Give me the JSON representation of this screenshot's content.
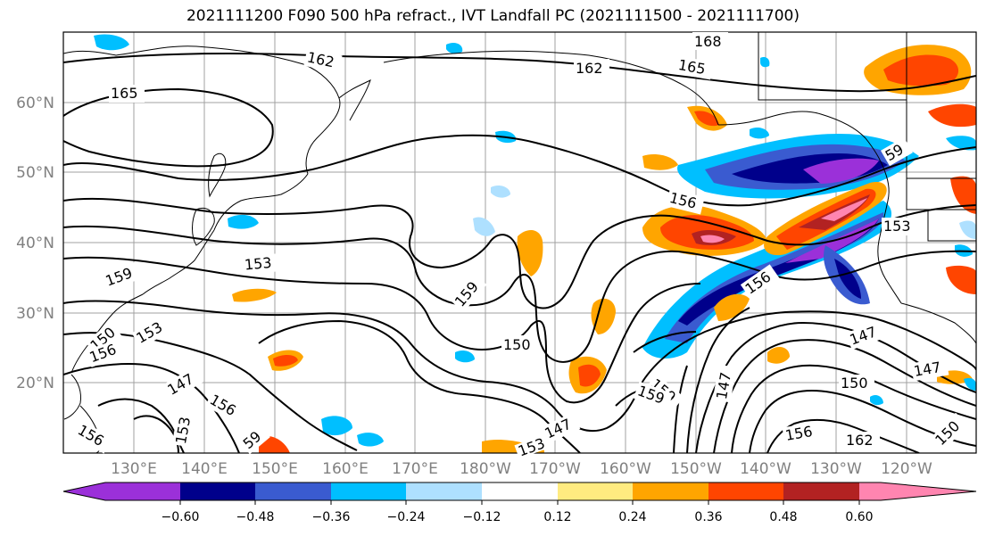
{
  "title": "2021111200 F090 500 hPa refract., IVT Landfall PC (2021111500 - 2021111700)",
  "lat_labels": [
    "60°N",
    "50°N",
    "40°N",
    "30°N",
    "20°N"
  ],
  "lon_labels": [
    "130°E",
    "140°E",
    "150°E",
    "160°E",
    "170°E",
    "180°W",
    "170°W",
    "160°W",
    "150°W",
    "140°W",
    "130°W",
    "120°W"
  ],
  "contour_labels": [
    {
      "id": "c168",
      "text": "168"
    },
    {
      "id": "c162a",
      "text": "162"
    },
    {
      "id": "c162b",
      "text": "162"
    },
    {
      "id": "c165a",
      "text": "165"
    },
    {
      "id": "c165b",
      "text": "165"
    },
    {
      "id": "c156a",
      "text": "156"
    },
    {
      "id": "c153a",
      "text": "153"
    },
    {
      "id": "c159a",
      "text": "159"
    },
    {
      "id": "c159b",
      "text": "159"
    },
    {
      "id": "c150a",
      "text": "150"
    },
    {
      "id": "c156b",
      "text": "156"
    },
    {
      "id": "c153b",
      "text": "153"
    },
    {
      "id": "c150b",
      "text": "150"
    },
    {
      "id": "c156c",
      "text": "156"
    },
    {
      "id": "c147a",
      "text": "147"
    },
    {
      "id": "c156d",
      "text": "156"
    },
    {
      "id": "c153c",
      "text": "153"
    },
    {
      "id": "c59a",
      "text": "59"
    },
    {
      "id": "c156e",
      "text": "156"
    },
    {
      "id": "c147b",
      "text": "147"
    },
    {
      "id": "c153d",
      "text": "153"
    },
    {
      "id": "c147c",
      "text": "147"
    },
    {
      "id": "c147d",
      "text": "147"
    },
    {
      "id": "c147e",
      "text": "147"
    },
    {
      "id": "c150c",
      "text": "150"
    },
    {
      "id": "c159c",
      "text": "159"
    },
    {
      "id": "c156f",
      "text": "156"
    },
    {
      "id": "c162c",
      "text": "162"
    },
    {
      "id": "c150d",
      "text": "150"
    },
    {
      "id": "c159d",
      "text": "59"
    },
    {
      "id": "c159e",
      "text": "159"
    },
    {
      "id": "c153e",
      "text": "153"
    }
  ],
  "colorbar": {
    "colors": [
      "#9b30d9",
      "#00008b",
      "#3a5bd0",
      "#00bfff",
      "#aee0ff",
      "#ffffff",
      "#ffeb80",
      "#ffa500",
      "#ff4500",
      "#b22222",
      "#ff85b0"
    ],
    "tick_labels": [
      "−0.60",
      "−0.48",
      "−0.36",
      "−0.24",
      "−0.12",
      "0.12",
      "0.24",
      "0.36",
      "0.48",
      "0.60"
    ]
  }
}
